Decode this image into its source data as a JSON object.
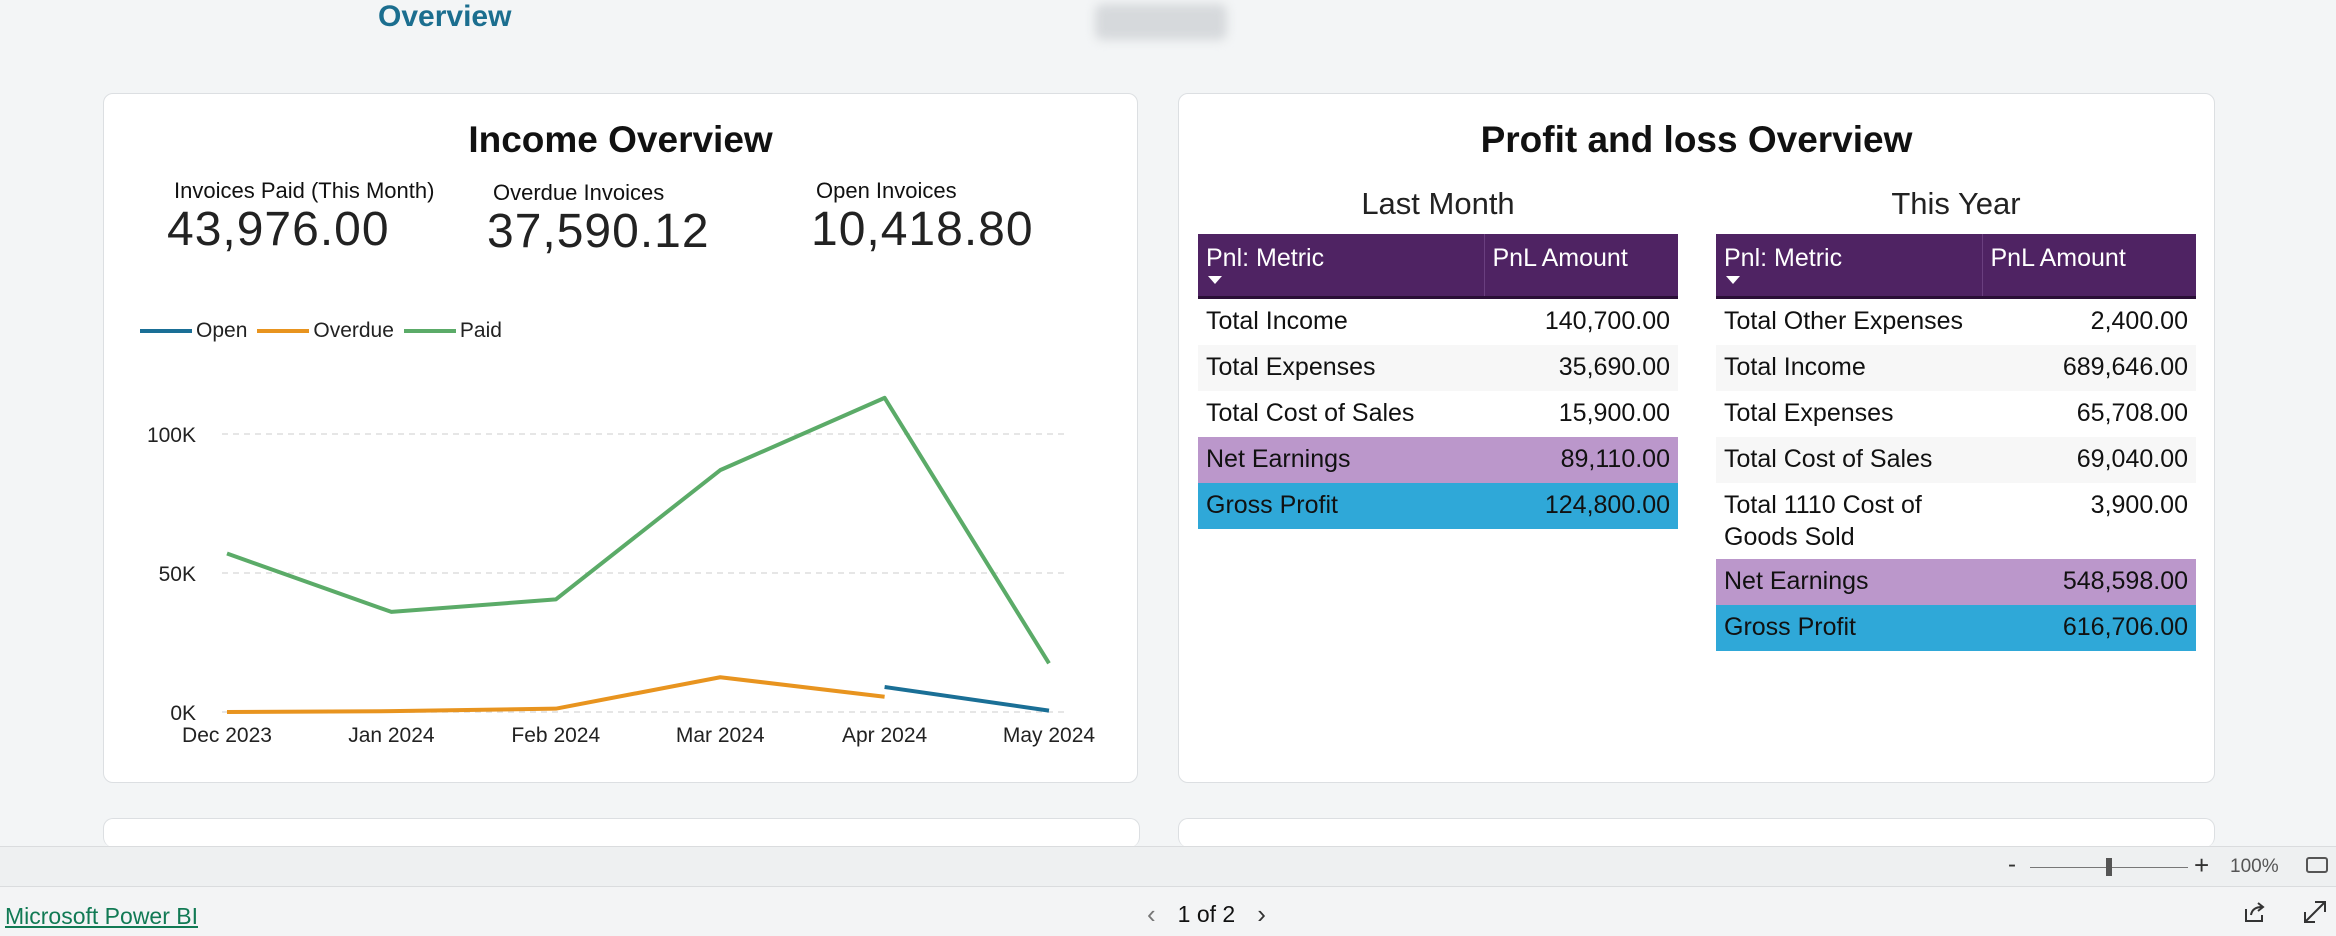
{
  "header": {
    "title": "Overview"
  },
  "income": {
    "title": "Income Overview",
    "kpis": [
      {
        "label": "Invoices Paid (This Month)",
        "value": "43,976.00"
      },
      {
        "label": "Overdue Invoices",
        "value": "37,590.12"
      },
      {
        "label": "Open Invoices",
        "value": "10,418.80"
      }
    ]
  },
  "chart_data": {
    "type": "line",
    "categories": [
      "Dec 2023",
      "Jan 2024",
      "Feb 2024",
      "Mar 2024",
      "Apr 2024",
      "May 2024"
    ],
    "yticks": [
      "0K",
      "50K",
      "100K"
    ],
    "ylim": [
      0,
      115000
    ],
    "legend_position": "top-left",
    "grid": true,
    "series": [
      {
        "name": "Open",
        "color": "#1a6f96",
        "values": [
          null,
          null,
          null,
          null,
          9000,
          500
        ]
      },
      {
        "name": "Overdue",
        "color": "#e8941f",
        "values": [
          0,
          300,
          1200,
          12500,
          5500,
          null
        ]
      },
      {
        "name": "Paid",
        "color": "#5bab68",
        "values": [
          57000,
          36000,
          40500,
          87000,
          113000,
          17500
        ]
      }
    ]
  },
  "pnl": {
    "title": "Profit and loss Overview",
    "headers": {
      "metric": "Pnl: Metric",
      "amount": "PnL Amount"
    },
    "last_month": {
      "title": "Last Month",
      "rows": [
        {
          "metric": "Total Income",
          "amount": "140,700.00"
        },
        {
          "metric": "Total Expenses",
          "amount": "35,690.00"
        },
        {
          "metric": "Total Cost of Sales",
          "amount": "15,900.00"
        },
        {
          "metric": "Net Earnings",
          "amount": "89,110.00"
        },
        {
          "metric": "Gross Profit",
          "amount": "124,800.00"
        }
      ]
    },
    "this_year": {
      "title": "This Year",
      "rows": [
        {
          "metric": "Total Other Expenses",
          "amount": "2,400.00"
        },
        {
          "metric": "Total Income",
          "amount": "689,646.00"
        },
        {
          "metric": "Total Expenses",
          "amount": "65,708.00"
        },
        {
          "metric": "Total Cost of Sales",
          "amount": "69,040.00"
        },
        {
          "metric": "Total 1110 Cost of Goods Sold",
          "amount": "3,900.00"
        },
        {
          "metric": "Net Earnings",
          "amount": "548,598.00"
        },
        {
          "metric": "Gross Profit",
          "amount": "616,706.00"
        }
      ]
    },
    "colors": {
      "header": "#4f2363",
      "net_earnings": "#bb97cb",
      "gross_profit": "#2fa8d8"
    }
  },
  "zoom": {
    "level": "100%",
    "minus": "-",
    "plus": "+"
  },
  "footer": {
    "brand_link": "Microsoft Power BI",
    "page_indicator": "1 of 2",
    "prev": "‹",
    "next": "›"
  }
}
